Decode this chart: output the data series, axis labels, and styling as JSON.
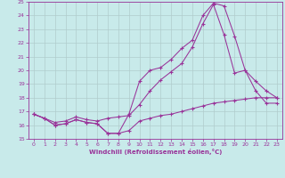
{
  "xlabel": "Windchill (Refroidissement éolien,°C)",
  "bg_color": "#c8eaea",
  "grid_color": "#b0cccc",
  "line_color": "#993399",
  "xlim": [
    -0.5,
    23.5
  ],
  "ylim": [
    15,
    25
  ],
  "xticks": [
    0,
    1,
    2,
    3,
    4,
    5,
    6,
    7,
    8,
    9,
    10,
    11,
    12,
    13,
    14,
    15,
    16,
    17,
    18,
    19,
    20,
    21,
    22,
    23
  ],
  "yticks": [
    15,
    16,
    17,
    18,
    19,
    20,
    21,
    22,
    23,
    24,
    25
  ],
  "series1_x": [
    0,
    1,
    2,
    3,
    4,
    5,
    6,
    7,
    8,
    9,
    10,
    11,
    12,
    13,
    14,
    15,
    16,
    17,
    18,
    19,
    20,
    21,
    22,
    23
  ],
  "series1_y": [
    16.8,
    16.5,
    16.0,
    16.1,
    16.4,
    16.2,
    16.1,
    15.4,
    15.4,
    15.6,
    16.3,
    16.5,
    16.7,
    16.8,
    17.0,
    17.2,
    17.4,
    17.6,
    17.7,
    17.8,
    17.9,
    18.0,
    18.0,
    18.0
  ],
  "series2_x": [
    0,
    1,
    2,
    3,
    4,
    5,
    6,
    7,
    8,
    9,
    10,
    11,
    12,
    13,
    14,
    15,
    16,
    17,
    18,
    19,
    20,
    21,
    22,
    23
  ],
  "series2_y": [
    16.8,
    16.5,
    16.2,
    16.3,
    16.6,
    16.4,
    16.3,
    16.5,
    16.6,
    16.7,
    17.5,
    18.5,
    19.3,
    19.9,
    20.5,
    21.7,
    23.4,
    24.8,
    22.6,
    19.8,
    20.0,
    19.2,
    18.5,
    18.0
  ],
  "series3_x": [
    0,
    1,
    2,
    3,
    4,
    5,
    6,
    7,
    8,
    9,
    10,
    11,
    12,
    13,
    14,
    15,
    16,
    17,
    18,
    19,
    20,
    21,
    22,
    23
  ],
  "series3_y": [
    16.8,
    16.5,
    16.0,
    16.1,
    16.4,
    16.2,
    16.1,
    15.4,
    15.4,
    16.8,
    19.2,
    20.0,
    20.2,
    20.8,
    21.6,
    22.2,
    24.0,
    24.9,
    24.7,
    22.5,
    20.0,
    18.5,
    17.6,
    17.6
  ]
}
